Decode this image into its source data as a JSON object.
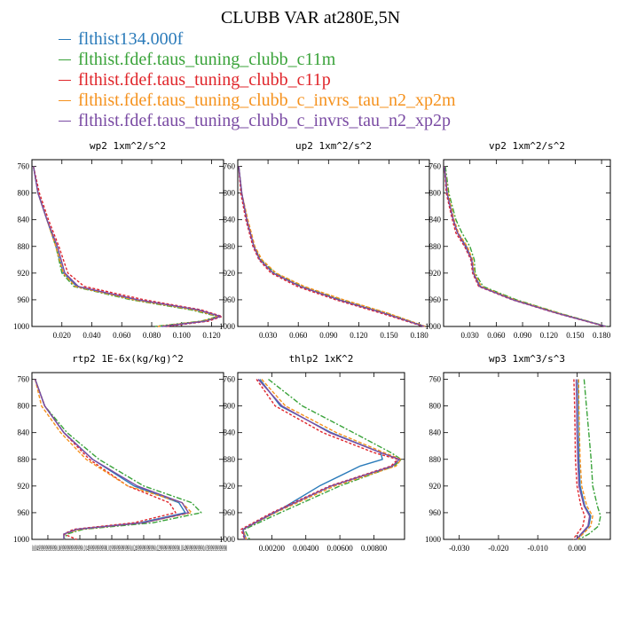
{
  "title": "CLUBB VAR at280E,5N",
  "legend": [
    {
      "label": "flthist134.000f",
      "color": "#2b7bba"
    },
    {
      "label": "flthist.fdef.taus_tuning_clubb_c11m",
      "color": "#3aa33a"
    },
    {
      "label": "flthist.fdef.taus_tuning_clubb_c11p",
      "color": "#e0262b"
    },
    {
      "label": "flthist.fdef.taus_tuning_clubb_c_invrs_tau_n2_xp2m",
      "color": "#f5921e"
    },
    {
      "label": "flthist.fdef.taus_tuning_clubb_c_invrs_tau_n2_xp2p",
      "color": "#7a4ba3"
    }
  ],
  "chart_data": [
    {
      "type": "line",
      "title": "wp2  1xm^2/s^2",
      "ylim": [
        1000,
        750
      ],
      "xlim": [
        0.0,
        0.128
      ],
      "y_ticks": [
        "760",
        "800",
        "840",
        "880",
        "920",
        "960",
        "1000"
      ],
      "x_ticks": [
        "0.020",
        "0.040",
        "0.060",
        "0.080",
        "0.100",
        "0.120"
      ],
      "y": [
        760,
        800,
        840,
        880,
        920,
        940,
        960,
        975,
        985,
        992,
        1000
      ],
      "series": [
        {
          "name": "flthist134.000f",
          "values": [
            0.001,
            0.004,
            0.01,
            0.016,
            0.021,
            0.03,
            0.07,
            0.11,
            0.126,
            0.115,
            0.085
          ]
        },
        {
          "name": "flthist.fdef.taus_tuning_clubb_c11m",
          "values": [
            0.001,
            0.004,
            0.01,
            0.016,
            0.02,
            0.028,
            0.066,
            0.106,
            0.124,
            0.113,
            0.082
          ]
        },
        {
          "name": "flthist.fdef.taus_tuning_clubb_c11p",
          "values": [
            0.001,
            0.005,
            0.011,
            0.018,
            0.024,
            0.035,
            0.075,
            0.113,
            0.127,
            0.118,
            0.09
          ]
        },
        {
          "name": "flthist.fdef.taus_tuning_clubb_c_invrs_tau_n2_xp2m",
          "values": [
            0.001,
            0.004,
            0.01,
            0.016,
            0.021,
            0.029,
            0.068,
            0.108,
            0.125,
            0.114,
            0.084
          ]
        },
        {
          "name": "flthist.fdef.taus_tuning_clubb_c_invrs_tau_n2_xp2p",
          "values": [
            0.001,
            0.004,
            0.01,
            0.017,
            0.022,
            0.031,
            0.071,
            0.111,
            0.126,
            0.116,
            0.087
          ]
        }
      ]
    },
    {
      "type": "line",
      "title": "up2  1xm^2/s^2",
      "ylim": [
        1000,
        750
      ],
      "xlim": [
        0.0,
        0.19
      ],
      "y_ticks": [
        "760",
        "800",
        "840",
        "880",
        "920",
        "960",
        "1000"
      ],
      "x_ticks": [
        "0.030",
        "0.060",
        "0.090",
        "0.120",
        "0.150",
        "0.180"
      ],
      "y": [
        760,
        800,
        840,
        880,
        900,
        920,
        940,
        960,
        980,
        1000
      ],
      "series": [
        {
          "name": "flthist134.000f",
          "values": [
            0.001,
            0.004,
            0.009,
            0.016,
            0.022,
            0.035,
            0.062,
            0.1,
            0.145,
            0.185
          ]
        },
        {
          "name": "flthist.fdef.taus_tuning_clubb_c11m",
          "values": [
            0.001,
            0.004,
            0.009,
            0.016,
            0.023,
            0.037,
            0.064,
            0.103,
            0.148,
            0.186
          ]
        },
        {
          "name": "flthist.fdef.taus_tuning_clubb_c11p",
          "values": [
            0.001,
            0.003,
            0.008,
            0.015,
            0.021,
            0.033,
            0.059,
            0.097,
            0.142,
            0.184
          ]
        },
        {
          "name": "flthist.fdef.taus_tuning_clubb_c_invrs_tau_n2_xp2m",
          "values": [
            0.001,
            0.004,
            0.01,
            0.017,
            0.024,
            0.038,
            0.066,
            0.105,
            0.149,
            0.186
          ]
        },
        {
          "name": "flthist.fdef.taus_tuning_clubb_c_invrs_tau_n2_xp2p",
          "values": [
            0.001,
            0.004,
            0.009,
            0.016,
            0.022,
            0.035,
            0.062,
            0.1,
            0.145,
            0.185
          ]
        }
      ]
    },
    {
      "type": "line",
      "title": "vp2  1xm^2/s^2",
      "ylim": [
        1000,
        750
      ],
      "xlim": [
        0.0,
        0.19
      ],
      "y_ticks": [
        "760",
        "800",
        "840",
        "880",
        "920",
        "960",
        "1000"
      ],
      "x_ticks": [
        "0.030",
        "0.060",
        "0.090",
        "0.120",
        "0.150",
        "0.180"
      ],
      "y": [
        760,
        800,
        840,
        860,
        880,
        900,
        920,
        940,
        960,
        980,
        1000
      ],
      "series": [
        {
          "name": "flthist134.000f",
          "values": [
            0.001,
            0.004,
            0.011,
            0.016,
            0.026,
            0.032,
            0.034,
            0.042,
            0.08,
            0.13,
            0.185
          ]
        },
        {
          "name": "flthist.fdef.taus_tuning_clubb_c11m",
          "values": [
            0.002,
            0.006,
            0.014,
            0.021,
            0.03,
            0.035,
            0.036,
            0.045,
            0.083,
            0.132,
            0.186
          ]
        },
        {
          "name": "flthist.fdef.taus_tuning_clubb_c11p",
          "values": [
            0.001,
            0.003,
            0.01,
            0.014,
            0.024,
            0.031,
            0.033,
            0.04,
            0.078,
            0.128,
            0.184
          ]
        },
        {
          "name": "flthist.fdef.taus_tuning_clubb_c_invrs_tau_n2_xp2m",
          "values": [
            0.001,
            0.005,
            0.012,
            0.017,
            0.027,
            0.033,
            0.035,
            0.043,
            0.081,
            0.131,
            0.185
          ]
        },
        {
          "name": "flthist.fdef.taus_tuning_clubb_c_invrs_tau_n2_xp2p",
          "values": [
            0.001,
            0.004,
            0.011,
            0.016,
            0.025,
            0.032,
            0.034,
            0.041,
            0.079,
            0.129,
            0.185
          ]
        }
      ]
    },
    {
      "type": "line",
      "title": "rtp2  1E-6x(kg/kg)^2",
      "ylim": [
        1000,
        750
      ],
      "xlim": [
        0.0,
        0.06
      ],
      "y_ticks": [
        "760",
        "800",
        "840",
        "880",
        "920",
        "960",
        "1000"
      ],
      "x_ticks": [
        "0.00499",
        "0.00999",
        "0.01500",
        "0.02000",
        "0.02500",
        "0.02999",
        "0.03499",
        "0.03999"
      ],
      "x_tick_labels": "0.0049999999999990.00999999999999990.0149999999999990.0199999999999990.0249999999999990.0299999999999990.0349999999999990.039999999999990",
      "y": [
        760,
        800,
        840,
        880,
        920,
        945,
        960,
        975,
        985,
        992,
        1000
      ],
      "series": [
        {
          "name": "flthist134.000f",
          "values": [
            0.001,
            0.004,
            0.01,
            0.019,
            0.032,
            0.046,
            0.048,
            0.034,
            0.014,
            0.01,
            0.01
          ]
        },
        {
          "name": "flthist.fdef.taus_tuning_clubb_c11m",
          "values": [
            0.001,
            0.004,
            0.011,
            0.021,
            0.035,
            0.05,
            0.053,
            0.038,
            0.016,
            0.011,
            0.01
          ]
        },
        {
          "name": "flthist.fdef.taus_tuning_clubb_c11p",
          "values": [
            0.001,
            0.004,
            0.01,
            0.018,
            0.03,
            0.043,
            0.045,
            0.032,
            0.013,
            0.01,
            0.014
          ]
        },
        {
          "name": "flthist.fdef.taus_tuning_clubb_c_invrs_tau_n2_xp2m",
          "values": [
            0.001,
            0.003,
            0.009,
            0.017,
            0.03,
            0.047,
            0.05,
            0.035,
            0.015,
            0.01,
            0.01
          ]
        },
        {
          "name": "flthist.fdef.taus_tuning_clubb_c_invrs_tau_n2_xp2p",
          "values": [
            0.001,
            0.004,
            0.01,
            0.019,
            0.033,
            0.047,
            0.049,
            0.035,
            0.014,
            0.01,
            0.01
          ]
        }
      ]
    },
    {
      "type": "line",
      "title": "thlp2  1xK^2",
      "ylim": [
        1000,
        750
      ],
      "xlim": [
        0.0,
        0.0098
      ],
      "y_ticks": [
        "760",
        "800",
        "840",
        "880",
        "920",
        "960",
        "1000"
      ],
      "x_ticks": [
        "0.00200",
        "0.00400",
        "0.00600",
        "0.00800"
      ],
      "y": [
        760,
        800,
        840,
        870,
        880,
        890,
        920,
        960,
        985,
        1000
      ],
      "series": [
        {
          "name": "flthist134.000f",
          "values": [
            0.0013,
            0.0025,
            0.0055,
            0.0084,
            0.0085,
            0.0072,
            0.0048,
            0.0022,
            0.0003,
            0.0005
          ]
        },
        {
          "name": "flthist.fdef.taus_tuning_clubb_c11m",
          "values": [
            0.0018,
            0.0038,
            0.0068,
            0.009,
            0.0096,
            0.0092,
            0.006,
            0.0025,
            0.0004,
            0.0007
          ]
        },
        {
          "name": "flthist.fdef.taus_tuning_clubb_c11p",
          "values": [
            0.0011,
            0.0022,
            0.005,
            0.008,
            0.0094,
            0.009,
            0.0054,
            0.002,
            0.0002,
            0.0004
          ]
        },
        {
          "name": "flthist.fdef.taus_tuning_clubb_c_invrs_tau_n2_xp2m",
          "values": [
            0.0014,
            0.0028,
            0.0058,
            0.0086,
            0.0096,
            0.0093,
            0.0057,
            0.0022,
            0.0003,
            0.0005
          ]
        },
        {
          "name": "flthist.fdef.taus_tuning_clubb_c_invrs_tau_n2_xp2p",
          "values": [
            0.0012,
            0.0026,
            0.0054,
            0.0084,
            0.0095,
            0.0091,
            0.0055,
            0.0021,
            0.0003,
            0.0004
          ]
        }
      ]
    },
    {
      "type": "line",
      "title": "wp3  1xm^3/s^3",
      "ylim": [
        1000,
        750
      ],
      "xlim": [
        -0.034,
        0.0085
      ],
      "y_ticks": [
        "760",
        "800",
        "840",
        "880",
        "920",
        "960",
        "1000"
      ],
      "x_ticks": [
        "-0.030",
        "-0.020",
        "-0.010",
        "0.000"
      ],
      "y": [
        760,
        800,
        840,
        880,
        920,
        950,
        965,
        980,
        992,
        1000
      ],
      "series": [
        {
          "name": "flthist134.000f",
          "values": [
            0.0002,
            0.0003,
            0.0004,
            0.0005,
            0.0008,
            0.002,
            0.0035,
            0.003,
            0.0012,
            0.0
          ]
        },
        {
          "name": "flthist.fdef.taus_tuning_clubb_c11m",
          "values": [
            0.0018,
            0.0024,
            0.003,
            0.0036,
            0.004,
            0.0052,
            0.006,
            0.0055,
            0.003,
            0.0005
          ]
        },
        {
          "name": "flthist.fdef.taus_tuning_clubb_c11p",
          "values": [
            -0.0008,
            -0.0006,
            -0.0005,
            -0.0004,
            0.0,
            0.001,
            0.002,
            0.0015,
            0.0,
            -0.001
          ]
        },
        {
          "name": "flthist.fdef.taus_tuning_clubb_c_invrs_tau_n2_xp2m",
          "values": [
            0.0004,
            0.0005,
            0.0006,
            0.0008,
            0.0012,
            0.0025,
            0.004,
            0.0035,
            0.0015,
            0.0002
          ]
        },
        {
          "name": "flthist.fdef.taus_tuning_clubb_c_invrs_tau_n2_xp2p",
          "values": [
            -0.0002,
            -0.0001,
            0.0,
            0.0002,
            0.0005,
            0.0018,
            0.0032,
            0.0028,
            0.001,
            -0.0002
          ]
        }
      ]
    }
  ]
}
